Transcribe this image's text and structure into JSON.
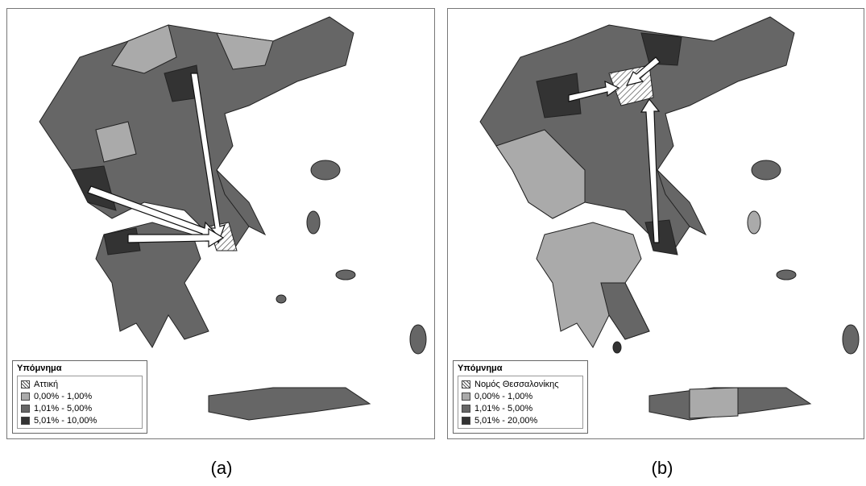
{
  "panels": [
    {
      "legend": {
        "title": "Υπόμνημα",
        "items": [
          "Αττική",
          "0,00% - 1,00%",
          "1,01% - 5,00%",
          "5,01% - 10,00%"
        ]
      },
      "caption": "(a)"
    },
    {
      "legend": {
        "title": "Υπόμνημα",
        "items": [
          "Νομός Θεσσαλονίκης",
          "0,00% - 1,00%",
          "1,01% - 5,00%",
          "5,01% - 20,00%"
        ]
      },
      "caption": "(b)"
    }
  ]
}
